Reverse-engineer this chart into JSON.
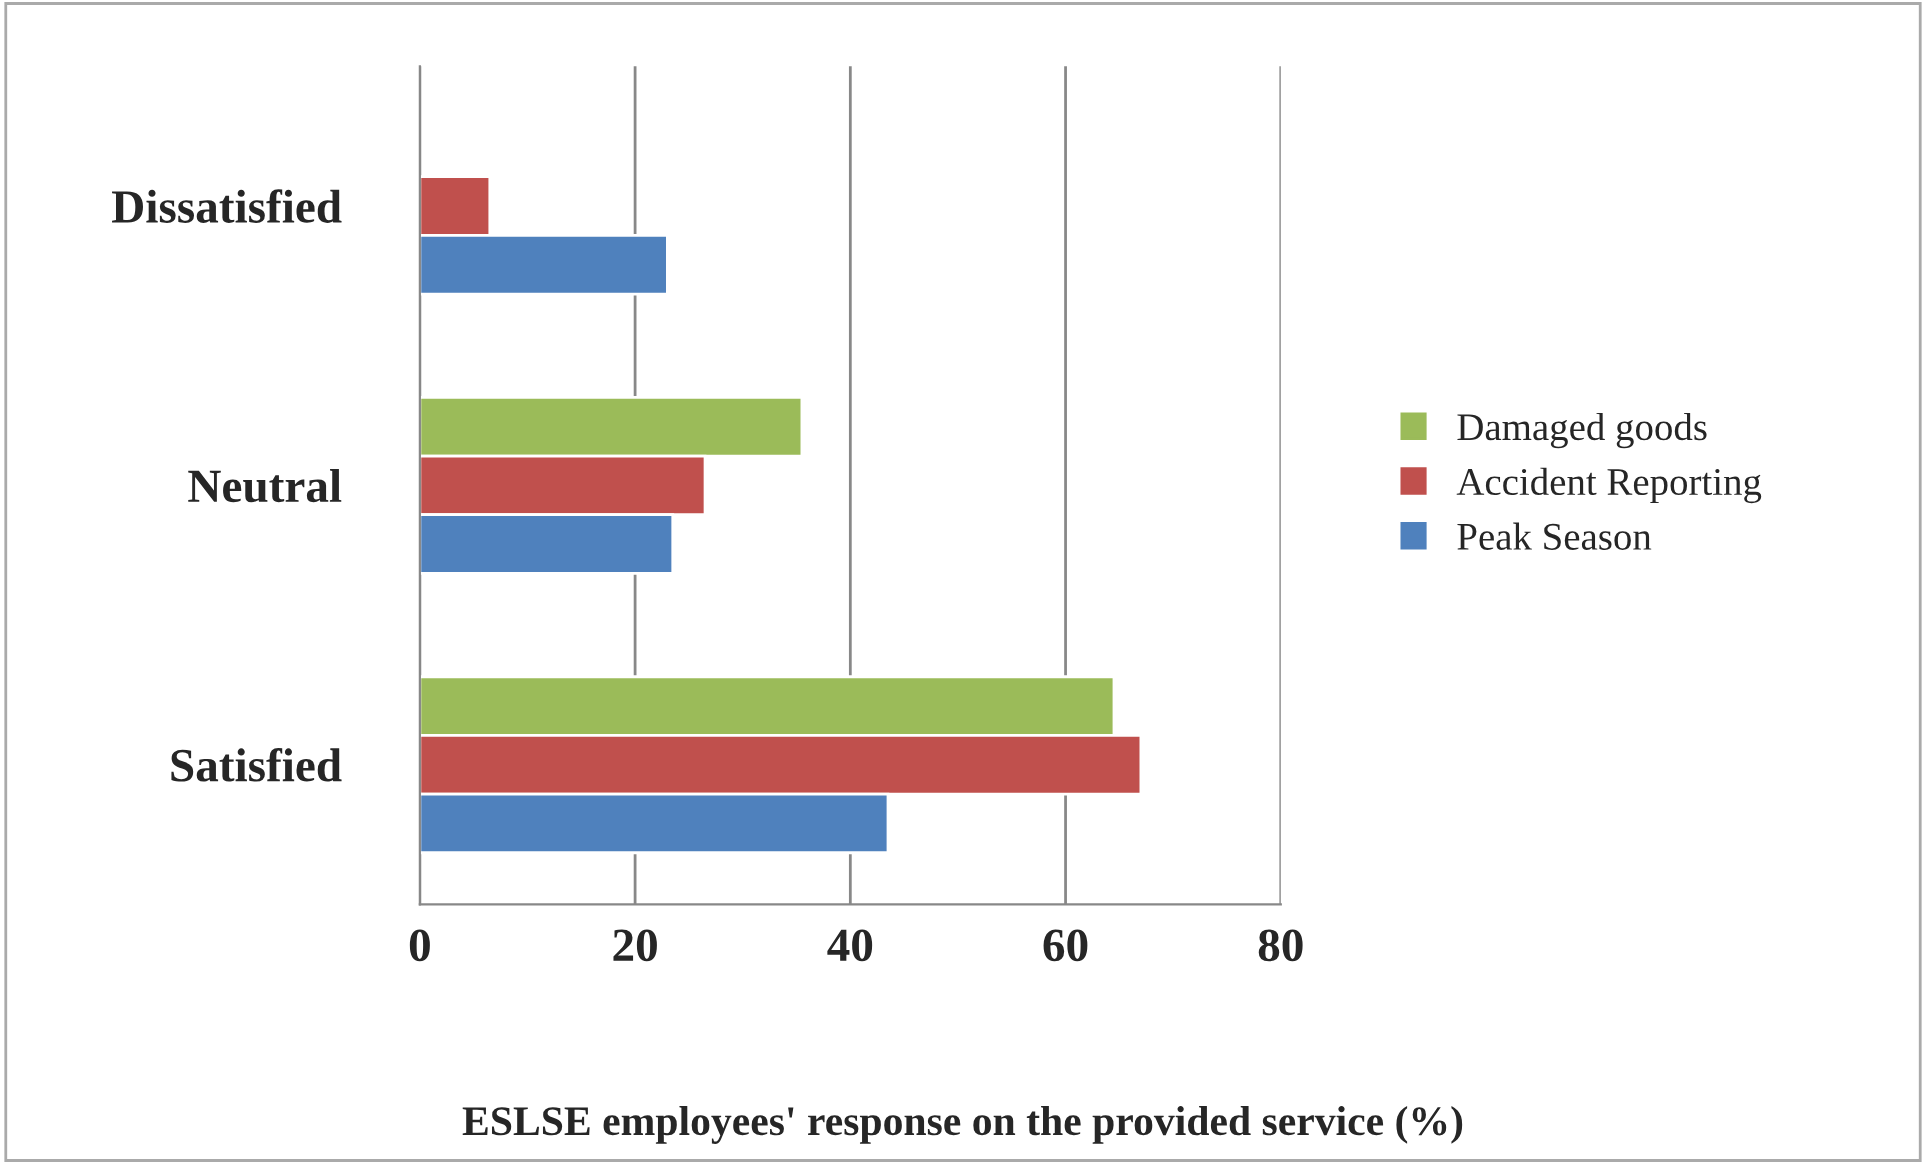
{
  "chart_data": {
    "type": "bar",
    "orientation": "horizontal",
    "categories": [
      "Dissatisfied",
      "Neutral",
      "Satisfied"
    ],
    "series": [
      {
        "name": "Damaged goods",
        "color": "#9bbb59",
        "values": [
          null,
          35.5,
          64.5
        ]
      },
      {
        "name": "Accident Reporting",
        "color": "#c0504d",
        "values": [
          6.5,
          26.5,
          67
        ]
      },
      {
        "name": "Peak Season",
        "color": "#4f81bd",
        "values": [
          23,
          23.5,
          43.5
        ]
      }
    ],
    "xlim": [
      0,
      80
    ],
    "xticks": [
      0,
      20,
      40,
      60,
      80
    ],
    "grid": "x",
    "legend": "right",
    "xlabel": "ESLSE employees' response on the provided service (%)"
  }
}
